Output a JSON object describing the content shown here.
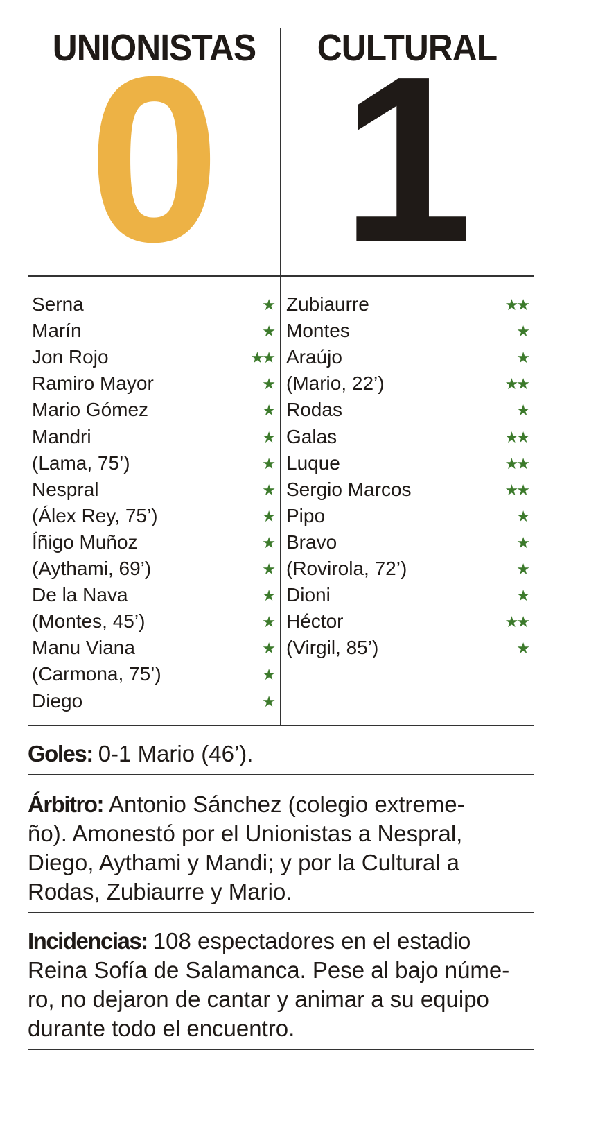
{
  "header": {
    "home_team": "UNIONISTAS",
    "away_team": "CULTURAL",
    "home_score": 0,
    "away_score": 1
  },
  "lineups": {
    "home": [
      {
        "name": "Serna",
        "rating": "★"
      },
      {
        "name": "Marín",
        "rating": "★"
      },
      {
        "name": "Jon Rojo",
        "rating": "★★"
      },
      {
        "name": "Ramiro Mayor",
        "rating": "★"
      },
      {
        "name": "Mario Gómez",
        "rating": "★"
      },
      {
        "name": "Mandri",
        "rating": "★"
      },
      {
        "name": "(Lama, 75’)",
        "rating": "★"
      },
      {
        "name": "Nespral",
        "rating": "★"
      },
      {
        "name": "(Álex Rey, 75’)",
        "rating": "★"
      },
      {
        "name": "Íñigo Muñoz",
        "rating": "★"
      },
      {
        "name": "(Aythami, 69’)",
        "rating": "★"
      },
      {
        "name": "De la Nava",
        "rating": "★"
      },
      {
        "name": "(Montes, 45’)",
        "rating": "★"
      },
      {
        "name": "Manu Viana",
        "rating": "★"
      },
      {
        "name": "(Carmona, 75’)",
        "rating": "★"
      },
      {
        "name": "Diego",
        "rating": "★"
      }
    ],
    "away": [
      {
        "name": "Zubiaurre",
        "rating": "★★"
      },
      {
        "name": "Montes",
        "rating": "★"
      },
      {
        "name": "Araújo",
        "rating": "★"
      },
      {
        "name": "(Mario, 22’)",
        "rating": "★★"
      },
      {
        "name": "Rodas",
        "rating": "★"
      },
      {
        "name": "Galas",
        "rating": "★★"
      },
      {
        "name": "Luque",
        "rating": "★★"
      },
      {
        "name": "Sergio Marcos",
        "rating": "★★"
      },
      {
        "name": "Pipo",
        "rating": "★"
      },
      {
        "name": "Bravo",
        "rating": "★"
      },
      {
        "name": "(Rovirola, 72’)",
        "rating": "★"
      },
      {
        "name": "Dioni",
        "rating": "★"
      },
      {
        "name": "Héctor",
        "rating": "★★"
      },
      {
        "name": "(Virgil, 85’)",
        "rating": "★"
      }
    ]
  },
  "sections": [
    {
      "label": "Goles:",
      "lines": [
        "0-1 Mario (46’)."
      ]
    },
    {
      "label": "Árbitro:",
      "lines": [
        "Antonio Sánchez (colegio extreme-",
        "ño). Amonestó por el Unionistas a Nespral,",
        "Diego, Aythami y Mandi; y por la Cultural a",
        "Rodas, Zubiaurre y Mario."
      ]
    },
    {
      "label": "Incidencias:",
      "lines": [
        "108 espectadores en el estadio",
        "Reina Sofía de Salamanca. Pese al bajo núme-",
        "ro, no dejaron de cantar y animar a su equipo",
        "durante todo el encuentro."
      ]
    }
  ]
}
